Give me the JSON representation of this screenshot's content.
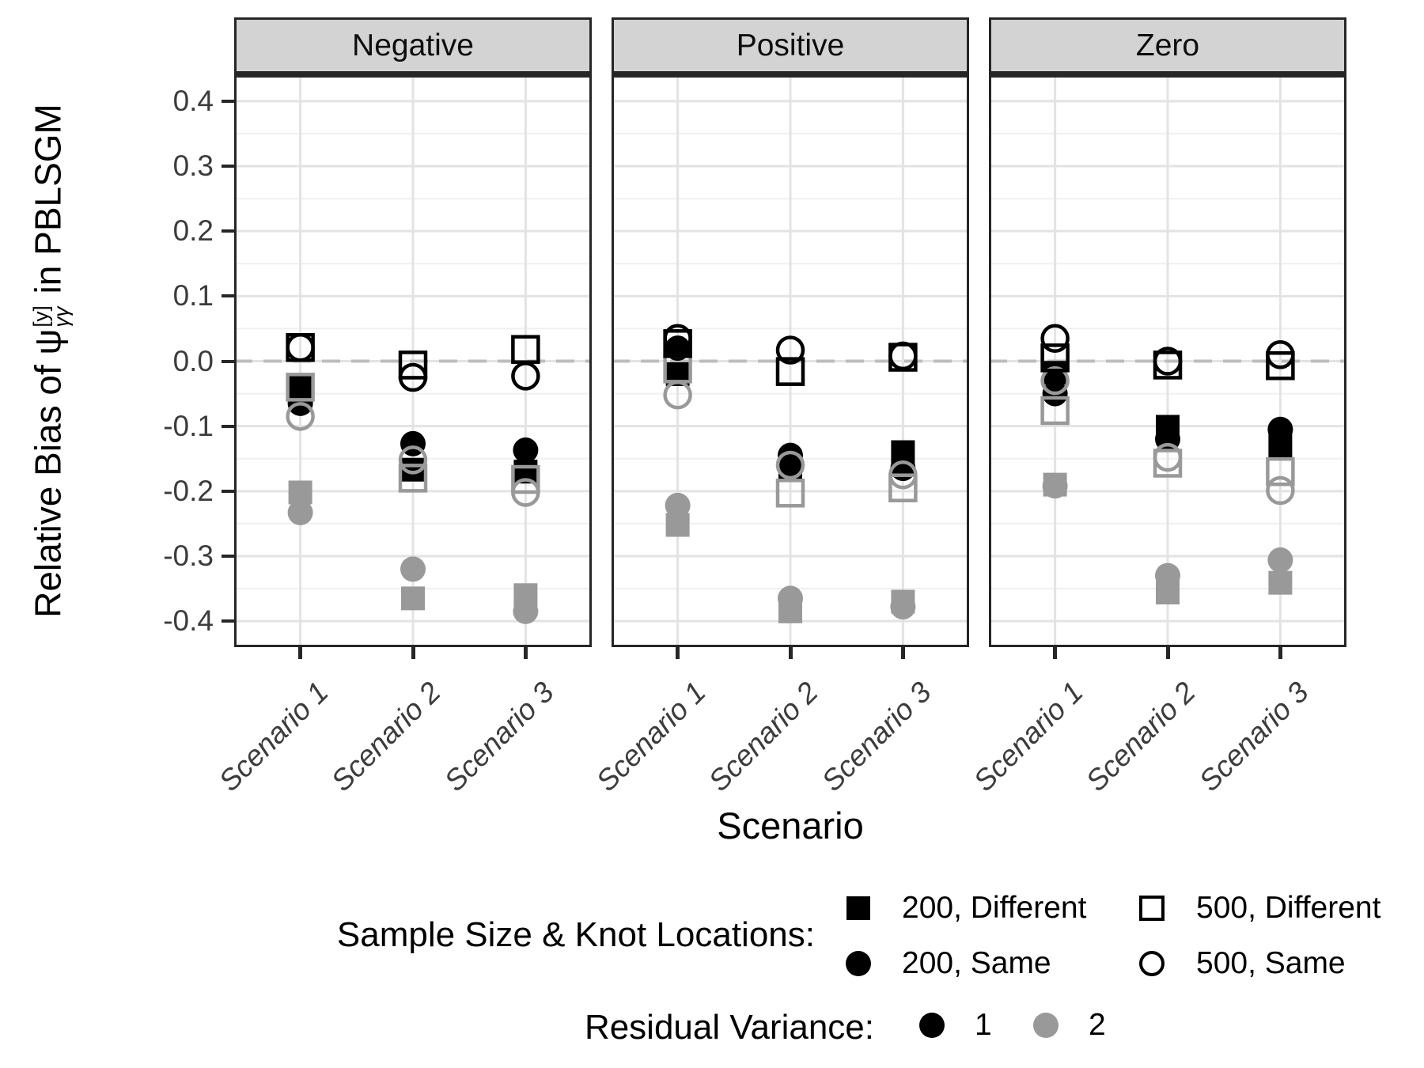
{
  "y_axis": {
    "title_prefix": "Relative Bias of ",
    "psi": "ψ",
    "psi_sup": "[y]",
    "psi_sub": "γγ",
    "title_suffix": " in PBLSGM",
    "tick_labels": [
      "0.4",
      "0.3",
      "0.2",
      "0.1",
      "0.0",
      "-0.1",
      "-0.2",
      "-0.3",
      "-0.4"
    ],
    "tick_values": [
      0.4,
      0.3,
      0.2,
      0.1,
      0.0,
      -0.1,
      -0.2,
      -0.3,
      -0.4
    ]
  },
  "x_axis": {
    "title": "Scenario",
    "categories": [
      "Scenario 1",
      "Scenario 2",
      "Scenario 3"
    ]
  },
  "chart_data": {
    "type": "scatter",
    "facets": [
      "Negative",
      "Positive",
      "Zero"
    ],
    "categories": [
      "Scenario 1",
      "Scenario 2",
      "Scenario 3"
    ],
    "ylim": [
      -0.44,
      0.44
    ],
    "y_major_gridlines": [
      -0.4,
      -0.3,
      -0.2,
      -0.1,
      0.0,
      0.1,
      0.2,
      0.3,
      0.4
    ],
    "y_minor_gridlines": [
      -0.35,
      -0.25,
      -0.15,
      -0.05,
      0.05,
      0.15,
      0.25,
      0.35
    ],
    "zero_reference_line": {
      "y": 0.0,
      "style": "dashed",
      "color": "#bdbdbd"
    },
    "grid_color_major": "#e3e3e3",
    "grid_color_minor": "#f0f0f0",
    "colors": {
      "residual_variance_1": "#000000",
      "residual_variance_2": "#999999"
    },
    "series": [
      {
        "sample_size": "200",
        "knot_locations": "Different",
        "residual_variance": "2",
        "marker": "square",
        "fill": "filled",
        "color": "#999999",
        "values": {
          "Negative": [
            -0.202,
            -0.365,
            -0.36
          ],
          "Positive": [
            -0.252,
            -0.385,
            -0.37
          ],
          "Zero": [
            -0.19,
            -0.356,
            -0.341
          ]
        }
      },
      {
        "sample_size": "200",
        "knot_locations": "Same",
        "residual_variance": "2",
        "marker": "circle",
        "fill": "filled",
        "color": "#999999",
        "values": {
          "Negative": [
            -0.233,
            -0.32,
            -0.385
          ],
          "Positive": [
            -0.222,
            -0.365,
            -0.378
          ],
          "Zero": [
            -0.192,
            -0.33,
            -0.306
          ]
        }
      },
      {
        "sample_size": "200",
        "knot_locations": "Different",
        "residual_variance": "1",
        "marker": "square",
        "fill": "filled",
        "color": "#000000",
        "values": {
          "Negative": [
            -0.041,
            -0.167,
            -0.17
          ],
          "Positive": [
            -0.02,
            -0.165,
            -0.14
          ],
          "Zero": [
            -0.018,
            -0.101,
            -0.13
          ]
        }
      },
      {
        "sample_size": "200",
        "knot_locations": "Same",
        "residual_variance": "1",
        "marker": "circle",
        "fill": "filled",
        "color": "#000000",
        "values": {
          "Negative": [
            -0.065,
            -0.127,
            -0.137
          ],
          "Positive": [
            0.02,
            -0.145,
            -0.165
          ],
          "Zero": [
            -0.05,
            -0.12,
            -0.105
          ]
        }
      },
      {
        "sample_size": "500",
        "knot_locations": "Different",
        "residual_variance": "2",
        "marker": "square",
        "fill": "open",
        "color": "#999999",
        "values": {
          "Negative": [
            -0.04,
            -0.18,
            -0.182
          ],
          "Positive": [
            -0.012,
            -0.203,
            -0.195
          ],
          "Zero": [
            -0.076,
            -0.157,
            -0.17
          ]
        }
      },
      {
        "sample_size": "500",
        "knot_locations": "Same",
        "residual_variance": "2",
        "marker": "circle",
        "fill": "open",
        "color": "#999999",
        "values": {
          "Negative": [
            -0.085,
            -0.152,
            -0.202
          ],
          "Positive": [
            -0.052,
            -0.16,
            -0.175
          ],
          "Zero": [
            -0.03,
            -0.148,
            -0.199
          ]
        }
      },
      {
        "sample_size": "500",
        "knot_locations": "Different",
        "residual_variance": "1",
        "marker": "square",
        "fill": "open",
        "color": "#000000",
        "values": {
          "Negative": [
            0.021,
            -0.006,
            0.018
          ],
          "Positive": [
            0.027,
            -0.016,
            0.006
          ],
          "Zero": [
            0.005,
            -0.006,
            -0.007
          ]
        }
      },
      {
        "sample_size": "500",
        "knot_locations": "Same",
        "residual_variance": "1",
        "marker": "circle",
        "fill": "open",
        "color": "#000000",
        "values": {
          "Negative": [
            0.021,
            -0.025,
            -0.023
          ],
          "Positive": [
            0.035,
            0.017,
            0.008
          ],
          "Zero": [
            0.035,
            0.0,
            0.01
          ]
        }
      }
    ]
  },
  "legend_sample_knot": {
    "title": "Sample Size & Knot Locations:",
    "items": [
      {
        "marker": "square-filled",
        "label": "200, Different"
      },
      {
        "marker": "square-open",
        "label": "500, Different"
      },
      {
        "marker": "circle-filled",
        "label": "200, Same"
      },
      {
        "marker": "circle-open",
        "label": "500, Same"
      }
    ]
  },
  "legend_residual": {
    "title": "Residual Variance:",
    "items": [
      {
        "marker": "circle-filled",
        "color": "#000000",
        "label": "1"
      },
      {
        "marker": "circle-filled",
        "color": "#999999",
        "label": "2"
      }
    ]
  }
}
